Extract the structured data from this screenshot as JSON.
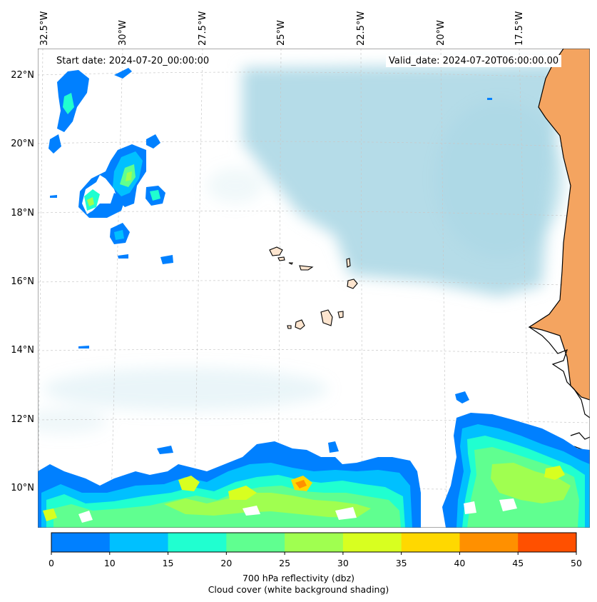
{
  "map": {
    "start_date": "Start date: 2024-07-20_00:00:00",
    "valid_date": "Valid_date: 2024-07-20T06:00:00.00",
    "lon_labels": [
      "32.5°W",
      "30°W",
      "27.5°W",
      "25°W",
      "22.5°W",
      "20°W",
      "17.5°W"
    ],
    "lat_labels": [
      "22°N",
      "20°N",
      "18°N",
      "16°N",
      "14°N",
      "12°N",
      "10°N"
    ],
    "land_color": "#f4a460",
    "cloud_color": "#add8e6"
  },
  "colorbar": {
    "ticks": [
      "0",
      "10",
      "15",
      "20",
      "25",
      "30",
      "35",
      "40",
      "45",
      "50"
    ],
    "colors": [
      "#0080ff",
      "#00c0ff",
      "#20ffd0",
      "#60ff90",
      "#a0ff50",
      "#d8ff20",
      "#ffd800",
      "#ff9000",
      "#ff5000"
    ],
    "label_line1": "700 hPa reflectivity (dbz)",
    "label_line2": "Cloud cover (white background shading)"
  }
}
